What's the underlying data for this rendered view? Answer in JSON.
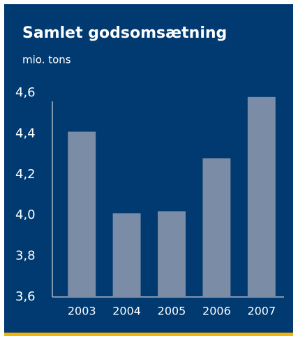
{
  "chart_data": {
    "type": "bar",
    "title": "Samlet godsomsætning",
    "subtitle": "mio. tons",
    "categories": [
      "2003",
      "2004",
      "2005",
      "2006",
      "2007"
    ],
    "values": [
      4.41,
      4.01,
      4.02,
      4.28,
      4.58
    ],
    "color": "#7b8ca6",
    "ylim": [
      3.6,
      4.6
    ],
    "yticks": [
      {
        "value": 3.6,
        "label": "3,6"
      },
      {
        "value": 3.8,
        "label": "3,8"
      },
      {
        "value": 4.0,
        "label": "4,0"
      },
      {
        "value": 4.2,
        "label": "4,2"
      },
      {
        "value": 4.4,
        "label": "4,4"
      },
      {
        "value": 4.6,
        "label": "4,6"
      }
    ],
    "grid": false
  }
}
